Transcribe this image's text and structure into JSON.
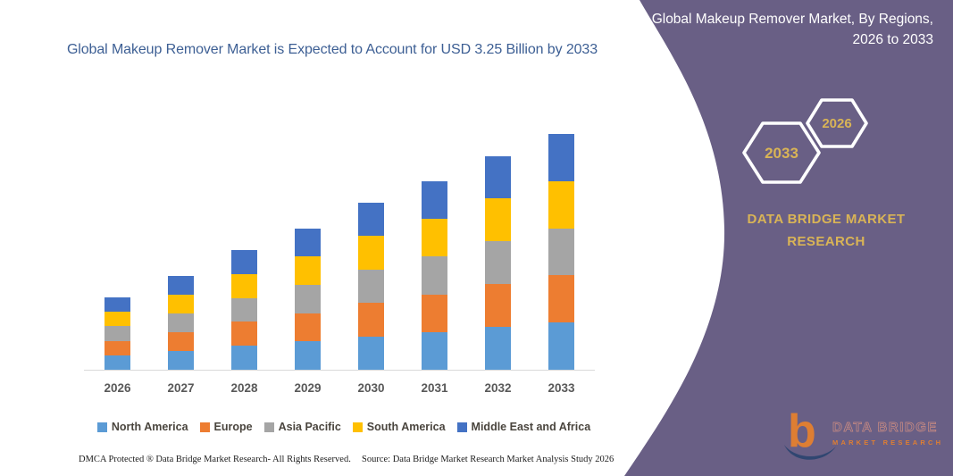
{
  "left_panel": {
    "title": "Global Makeup Remover Market is Expected to Account for USD 3.25 Billion by 2033",
    "footer_dmca": "DMCA Protected ® Data Bridge Market Research-  All Rights Reserved.",
    "footer_source": "Source: Data Bridge Market Research  Market Analysis Study 2026"
  },
  "right_panel": {
    "title": "Global Makeup Remover Market, By Regions, 2026 to 2033",
    "hexagon_back_label": "2033",
    "hexagon_front_label": "2026",
    "brand_name": "DATA BRIDGE MARKET RESEARCH",
    "bg_color": "#695f85",
    "accent_gold": "#d9b456",
    "logo": {
      "text_main": "DATA BRIDGE",
      "text_sub": "MARKET RESEARCH"
    }
  },
  "chart_data": {
    "type": "bar",
    "stacked": true,
    "title": "Global Makeup Remover Market is Expected to Account for USD 3.25 Billion by 2033",
    "categories": [
      "2026",
      "2027",
      "2028",
      "2029",
      "2030",
      "2031",
      "2032",
      "2033"
    ],
    "series": [
      {
        "name": "North America",
        "color": "#5b9bd5",
        "values": [
          0.2,
          0.26,
          0.33,
          0.39,
          0.46,
          0.52,
          0.59,
          0.65
        ]
      },
      {
        "name": "Europe",
        "color": "#ed7d31",
        "values": [
          0.2,
          0.26,
          0.33,
          0.39,
          0.46,
          0.52,
          0.59,
          0.65
        ]
      },
      {
        "name": "Asia Pacific",
        "color": "#a5a5a5",
        "values": [
          0.2,
          0.26,
          0.33,
          0.39,
          0.46,
          0.52,
          0.59,
          0.65
        ]
      },
      {
        "name": "South America",
        "color": "#ffc000",
        "values": [
          0.2,
          0.26,
          0.33,
          0.39,
          0.46,
          0.52,
          0.59,
          0.65
        ]
      },
      {
        "name": "Middle East and Africa",
        "color": "#4472c4",
        "values": [
          0.2,
          0.26,
          0.33,
          0.39,
          0.46,
          0.52,
          0.59,
          0.65
        ]
      }
    ],
    "totals_usd_billion": [
      0.98,
      1.3,
      1.63,
      1.95,
      2.28,
      2.6,
      2.93,
      3.25
    ],
    "final_value_label": "USD 3.25 Billion by 2033",
    "xlabel": "",
    "ylabel": "",
    "ylim": [
      0,
      3.25
    ],
    "grid": false,
    "value_axis_shown": false,
    "legend_position": "bottom",
    "legend_labels": [
      "North America",
      "Europe",
      "Asia Pacific",
      "South America",
      "Middle East and Africa"
    ]
  }
}
